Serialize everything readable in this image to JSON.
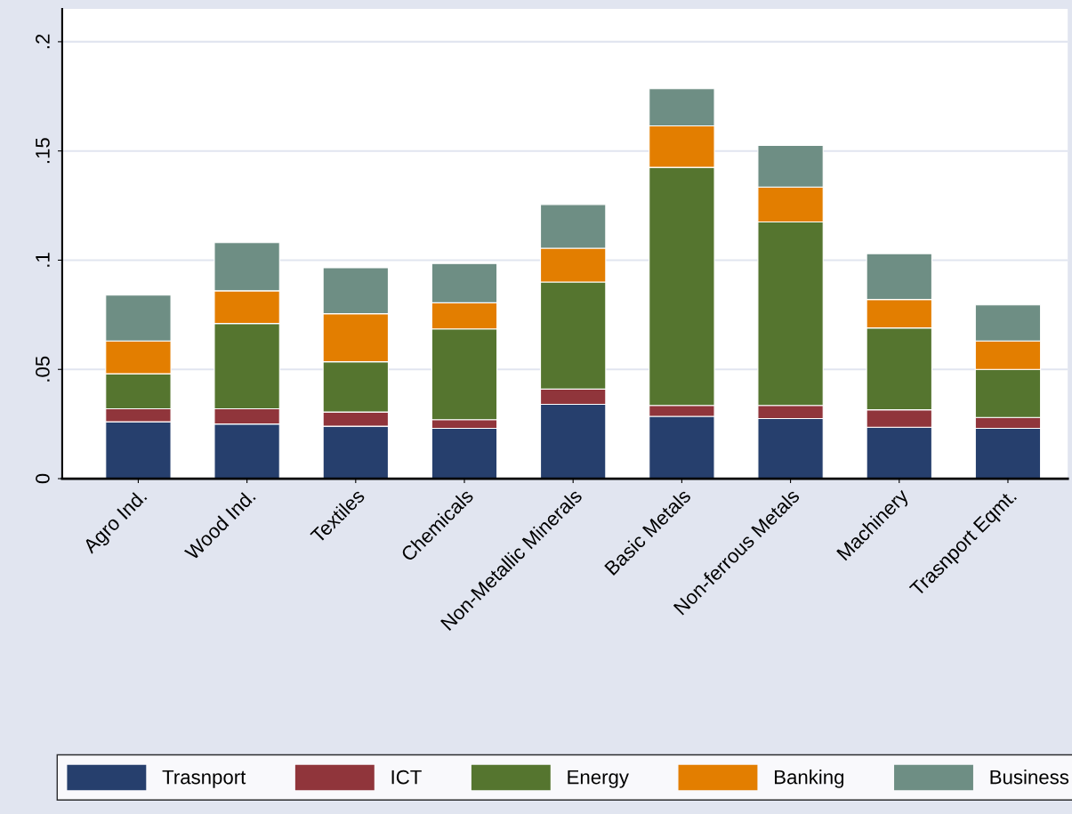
{
  "chart_data": {
    "type": "bar",
    "stacked": true,
    "categories": [
      "Agro Ind.",
      "Wood Ind.",
      "Textiles",
      "Chemicals",
      "Non-Metallic Minerals",
      "Basic Metals",
      "Non-ferrous Metals",
      "Machinery",
      "Trasnport Eqmt."
    ],
    "series": [
      {
        "name": "Trasnport",
        "color": "#263f6d",
        "values": [
          0.026,
          0.025,
          0.024,
          0.023,
          0.034,
          0.0285,
          0.0275,
          0.0235,
          0.023
        ]
      },
      {
        "name": "ICT",
        "color": "#90353b",
        "values": [
          0.006,
          0.007,
          0.0065,
          0.004,
          0.007,
          0.005,
          0.006,
          0.008,
          0.005
        ]
      },
      {
        "name": "Energy",
        "color": "#55752f",
        "values": [
          0.016,
          0.039,
          0.023,
          0.0415,
          0.049,
          0.109,
          0.084,
          0.0375,
          0.022
        ]
      },
      {
        "name": "Banking",
        "color": "#e37e00",
        "values": [
          0.015,
          0.015,
          0.022,
          0.012,
          0.0155,
          0.019,
          0.016,
          0.013,
          0.013
        ]
      },
      {
        "name": "Business",
        "color": "#6e8e84",
        "values": [
          0.021,
          0.022,
          0.021,
          0.018,
          0.02,
          0.017,
          0.019,
          0.021,
          0.0165
        ]
      }
    ],
    "ylim": [
      0,
      0.215
    ],
    "yticks": [
      {
        "value": 0,
        "label": "0"
      },
      {
        "value": 0.05,
        "label": ".05"
      },
      {
        "value": 0.1,
        "label": ".1"
      },
      {
        "value": 0.15,
        "label": ".15"
      },
      {
        "value": 0.2,
        "label": ".2"
      }
    ],
    "grid": "y",
    "legend": "bottom"
  }
}
